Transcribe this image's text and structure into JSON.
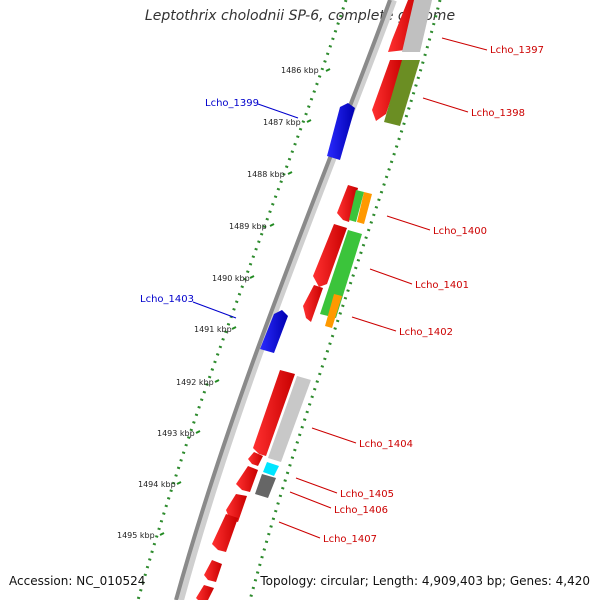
{
  "title": "Leptothrix cholodnii SP-6, complete genome",
  "footer": {
    "accession": "Accession: NC_010524",
    "topology": "Topology: circular; Length: 4,909,403 bp; Genes: 4,420"
  },
  "colors": {
    "backbone": "#888888",
    "ruler": "#228b22",
    "forward_gene": "#0000dd",
    "reverse_gene": "#ee0000",
    "label_forward": "#0000cc",
    "label_reverse": "#cc0000"
  },
  "ruler_ticks": [
    "1486 kbp",
    "1487 kbp",
    "1488 kbp",
    "1489 kbp",
    "1490 kbp",
    "1491 kbp",
    "1492 kbp",
    "1493 kbp",
    "1494 kbp",
    "1495 kbp"
  ],
  "gene_labels": {
    "lcho_1397": "Lcho_1397",
    "lcho_1398": "Lcho_1398",
    "lcho_1399": "Lcho_1399",
    "lcho_1400": "Lcho_1400",
    "lcho_1401": "Lcho_1401",
    "lcho_1402": "Lcho_1402",
    "lcho_1403": "Lcho_1403",
    "lcho_1404": "Lcho_1404",
    "lcho_1405": "Lcho_1405",
    "lcho_1406": "Lcho_1406",
    "lcho_1407": "Lcho_1407"
  }
}
